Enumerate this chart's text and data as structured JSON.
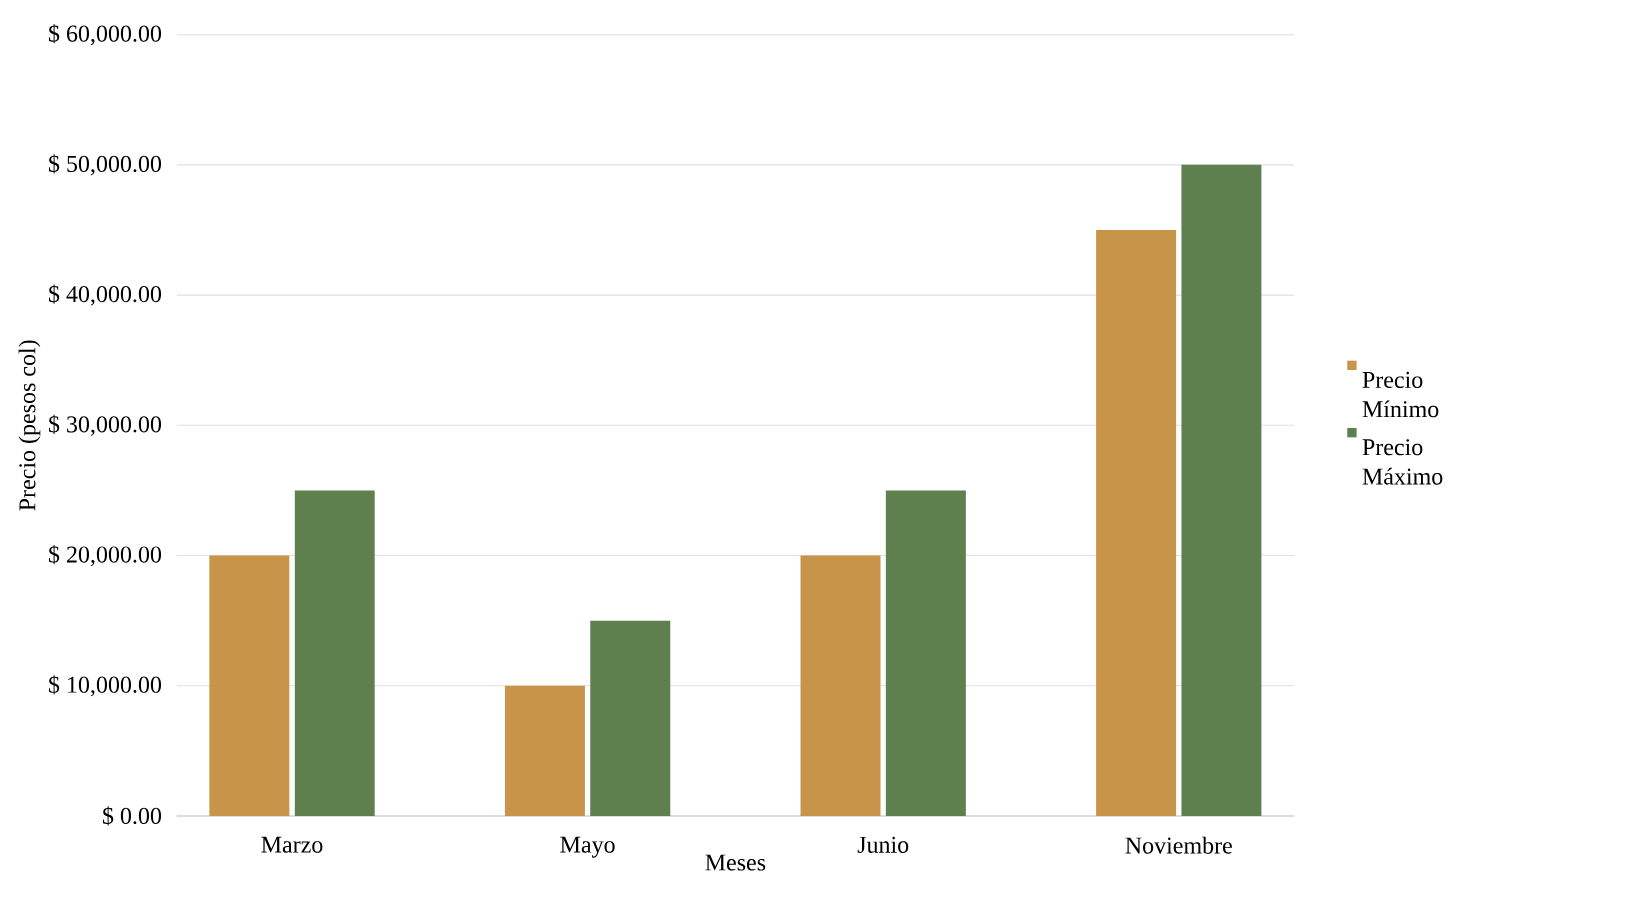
{
  "chart_data": {
    "type": "bar",
    "xlabel": "Meses",
    "ylabel": "Precio (pesos col)",
    "categories": [
      "Marzo",
      "Mayo",
      "Junio",
      "Noviembre"
    ],
    "series": [
      {
        "name": "Precio Mínimo",
        "color": "#c8944a",
        "values": [
          20000,
          10000,
          20000,
          45000
        ]
      },
      {
        "name": "Precio Máximo",
        "color": "#5e7f4e",
        "values": [
          25000,
          15000,
          25000,
          50000
        ]
      }
    ],
    "ylim": [
      0,
      60000
    ],
    "yticks": [
      {
        "value": 0,
        "label": "$ 0.00"
      },
      {
        "value": 10000,
        "label": "$ 10,000.00"
      },
      {
        "value": 20000,
        "label": "$ 20,000.00"
      },
      {
        "value": 30000,
        "label": "$ 30,000.00"
      },
      {
        "value": 40000,
        "label": "$ 40,000.00"
      },
      {
        "value": 50000,
        "label": "$ 50,000.00"
      },
      {
        "value": 60000,
        "label": "$ 60,000.00"
      }
    ],
    "grid": "y",
    "legend": "right"
  }
}
